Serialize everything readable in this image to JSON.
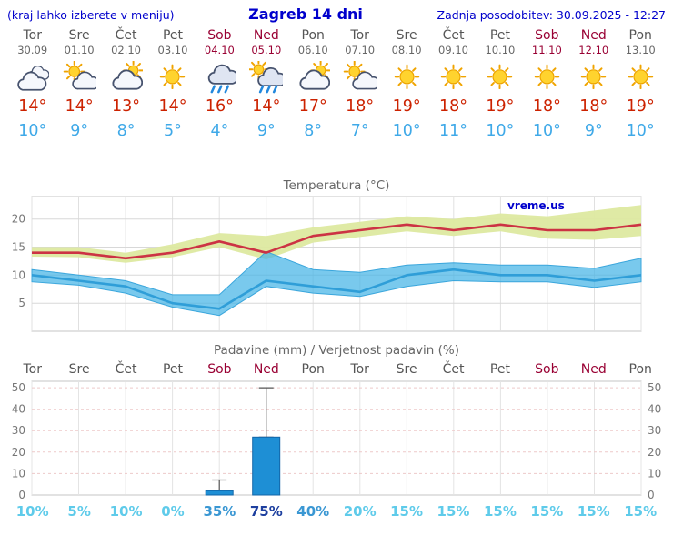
{
  "header": {
    "left_note": "(kraj lahko izberete v meniju)",
    "title": "Zagreb 14 dni",
    "updated": "Zadnja posodobitev: 30.09.2025 - 12:27"
  },
  "colors": {
    "accent_blue": "#0000cc",
    "weekend": "#990033",
    "tmax_red": "#cc2200",
    "tmin_blue": "#3fa9e8",
    "bar_blue": "#1e8fd5",
    "band_yellow": "#dde9a0",
    "band_blue": "#45b4e6",
    "tmax_line": "#cc3344",
    "tmin_line": "#2f9ed8"
  },
  "forecast": {
    "days": [
      {
        "day": "Tor",
        "date": "30.09",
        "weekend": false,
        "icon": "cloudy",
        "tmax": "14°",
        "tmin": "10°"
      },
      {
        "day": "Sre",
        "date": "01.10",
        "weekend": false,
        "icon": "partly-cloudy",
        "tmax": "14°",
        "tmin": "9°"
      },
      {
        "day": "Čet",
        "date": "02.10",
        "weekend": false,
        "icon": "mostly-cloudy",
        "tmax": "13°",
        "tmin": "8°"
      },
      {
        "day": "Pet",
        "date": "03.10",
        "weekend": false,
        "icon": "sunny",
        "tmax": "14°",
        "tmin": "5°"
      },
      {
        "day": "Sob",
        "date": "04.10",
        "weekend": true,
        "icon": "rain",
        "tmax": "16°",
        "tmin": "4°"
      },
      {
        "day": "Ned",
        "date": "05.10",
        "weekend": true,
        "icon": "rain-sun",
        "tmax": "14°",
        "tmin": "9°"
      },
      {
        "day": "Pon",
        "date": "06.10",
        "weekend": false,
        "icon": "mostly-cloudy",
        "tmax": "17°",
        "tmin": "8°"
      },
      {
        "day": "Tor",
        "date": "07.10",
        "weekend": false,
        "icon": "partly-cloudy",
        "tmax": "18°",
        "tmin": "7°"
      },
      {
        "day": "Sre",
        "date": "08.10",
        "weekend": false,
        "icon": "sunny",
        "tmax": "19°",
        "tmin": "10°"
      },
      {
        "day": "Čet",
        "date": "09.10",
        "weekend": false,
        "icon": "sunny",
        "tmax": "18°",
        "tmin": "11°"
      },
      {
        "day": "Pet",
        "date": "10.10",
        "weekend": false,
        "icon": "sunny",
        "tmax": "19°",
        "tmin": "10°"
      },
      {
        "day": "Sob",
        "date": "11.10",
        "weekend": true,
        "icon": "sunny",
        "tmax": "18°",
        "tmin": "10°"
      },
      {
        "day": "Ned",
        "date": "12.10",
        "weekend": true,
        "icon": "sunny",
        "tmax": "18°",
        "tmin": "9°"
      },
      {
        "day": "Pon",
        "date": "13.10",
        "weekend": false,
        "icon": "sunny",
        "tmax": "19°",
        "tmin": "10°"
      }
    ]
  },
  "chart_data": [
    {
      "type": "line",
      "title": "Temperatura (°C)",
      "watermark": "vreme.us",
      "categories": [
        "30.09",
        "01.10",
        "02.10",
        "03.10",
        "04.10",
        "05.10",
        "06.10",
        "07.10",
        "08.10",
        "09.10",
        "10.10",
        "11.10",
        "12.10",
        "13.10"
      ],
      "ylim": [
        0,
        24
      ],
      "yticks": [
        5,
        10,
        15,
        20
      ],
      "grid": true,
      "legend": "none",
      "series": [
        {
          "name": "tmax",
          "values": [
            14,
            14,
            13,
            14,
            16,
            14,
            17,
            18,
            19,
            18,
            19,
            18,
            18,
            19
          ]
        },
        {
          "name": "tmax_band_upper",
          "values": [
            15,
            15,
            14,
            15.5,
            17.5,
            17,
            18.5,
            19.5,
            20.5,
            20,
            21,
            20.5,
            21.5,
            22.5
          ]
        },
        {
          "name": "tmax_band_lower",
          "values": [
            13.3,
            13.2,
            12.2,
            13.2,
            15,
            12.8,
            15.8,
            16.8,
            17.8,
            17,
            17.8,
            16.5,
            16.3,
            17
          ]
        },
        {
          "name": "tmin",
          "values": [
            10,
            9,
            8,
            5,
            4,
            9,
            8,
            7,
            10,
            11,
            10,
            10,
            9,
            10
          ]
        },
        {
          "name": "tmin_band_upper",
          "values": [
            11,
            10,
            9,
            6.5,
            6.5,
            14.2,
            11,
            10.5,
            11.8,
            12.2,
            11.8,
            11.8,
            11.2,
            13
          ]
        },
        {
          "name": "tmin_band_lower",
          "values": [
            8.8,
            8.2,
            6.8,
            4.3,
            2.8,
            8,
            6.8,
            6.2,
            8,
            9,
            8.8,
            8.8,
            7.8,
            8.8
          ]
        }
      ]
    },
    {
      "type": "bar",
      "title": "Padavine (mm) / Verjetnost padavin (%)",
      "categories": [
        "Tor",
        "Sre",
        "Čet",
        "Pet",
        "Sob",
        "Ned",
        "Pon",
        "Tor",
        "Sre",
        "Čet",
        "Pet",
        "Sob",
        "Ned",
        "Pon"
      ],
      "ylim": [
        0,
        53
      ],
      "yticks": [
        0,
        10,
        20,
        30,
        40,
        50
      ],
      "values": [
        0,
        0,
        0,
        0,
        2,
        27,
        0,
        0,
        0,
        0,
        0,
        0,
        0,
        0
      ],
      "whisker_high": [
        0,
        0,
        0,
        0,
        7,
        50,
        0,
        0,
        0,
        0,
        0,
        0,
        0,
        0
      ],
      "probabilities": [
        {
          "label": "10%",
          "tier": "low"
        },
        {
          "label": "5%",
          "tier": "low"
        },
        {
          "label": "10%",
          "tier": "low"
        },
        {
          "label": "0%",
          "tier": "low"
        },
        {
          "label": "35%",
          "tier": "mid"
        },
        {
          "label": "75%",
          "tier": "high"
        },
        {
          "label": "40%",
          "tier": "mid"
        },
        {
          "label": "20%",
          "tier": "low"
        },
        {
          "label": "15%",
          "tier": "low"
        },
        {
          "label": "15%",
          "tier": "low"
        },
        {
          "label": "15%",
          "tier": "low"
        },
        {
          "label": "15%",
          "tier": "low"
        },
        {
          "label": "15%",
          "tier": "low"
        },
        {
          "label": "15%",
          "tier": "low"
        }
      ]
    }
  ]
}
